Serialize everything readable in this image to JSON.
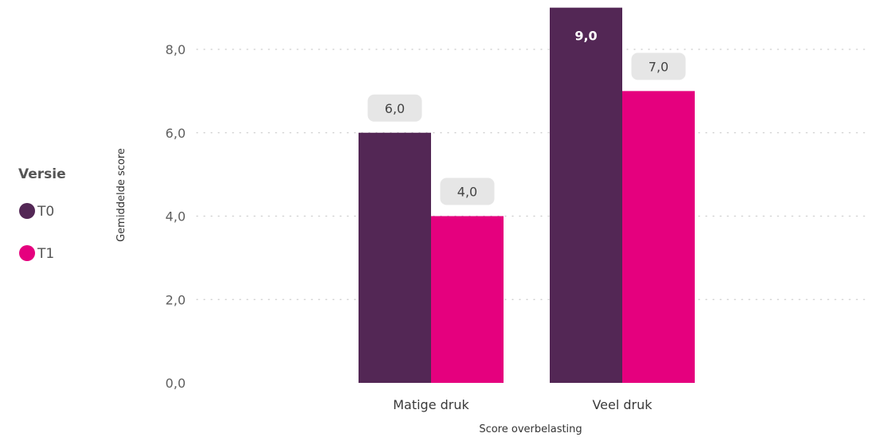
{
  "chart_data": {
    "type": "bar",
    "categories": [
      "Matige druk",
      "Veel druk"
    ],
    "series": [
      {
        "name": "T0",
        "values": [
          6.0,
          9.0
        ],
        "color": "#532755"
      },
      {
        "name": "T1",
        "values": [
          4.0,
          7.0
        ],
        "color": "#e5007e"
      }
    ],
    "xlabel": "Score overbelasting",
    "ylabel": "Gemiddelde score",
    "ylim": [
      0,
      9
    ],
    "yticks": [
      0,
      2,
      4,
      6,
      8
    ],
    "ytick_labels": [
      "0,0",
      "2,0",
      "4,0",
      "6,0",
      "8,0"
    ],
    "data_labels": [
      [
        "6,0",
        "9,0"
      ],
      [
        "4,0",
        "7,0"
      ]
    ],
    "legend": {
      "title": "Versie",
      "placement": "left"
    },
    "grid": true,
    "label_bg_color": "#e6e6e6"
  }
}
